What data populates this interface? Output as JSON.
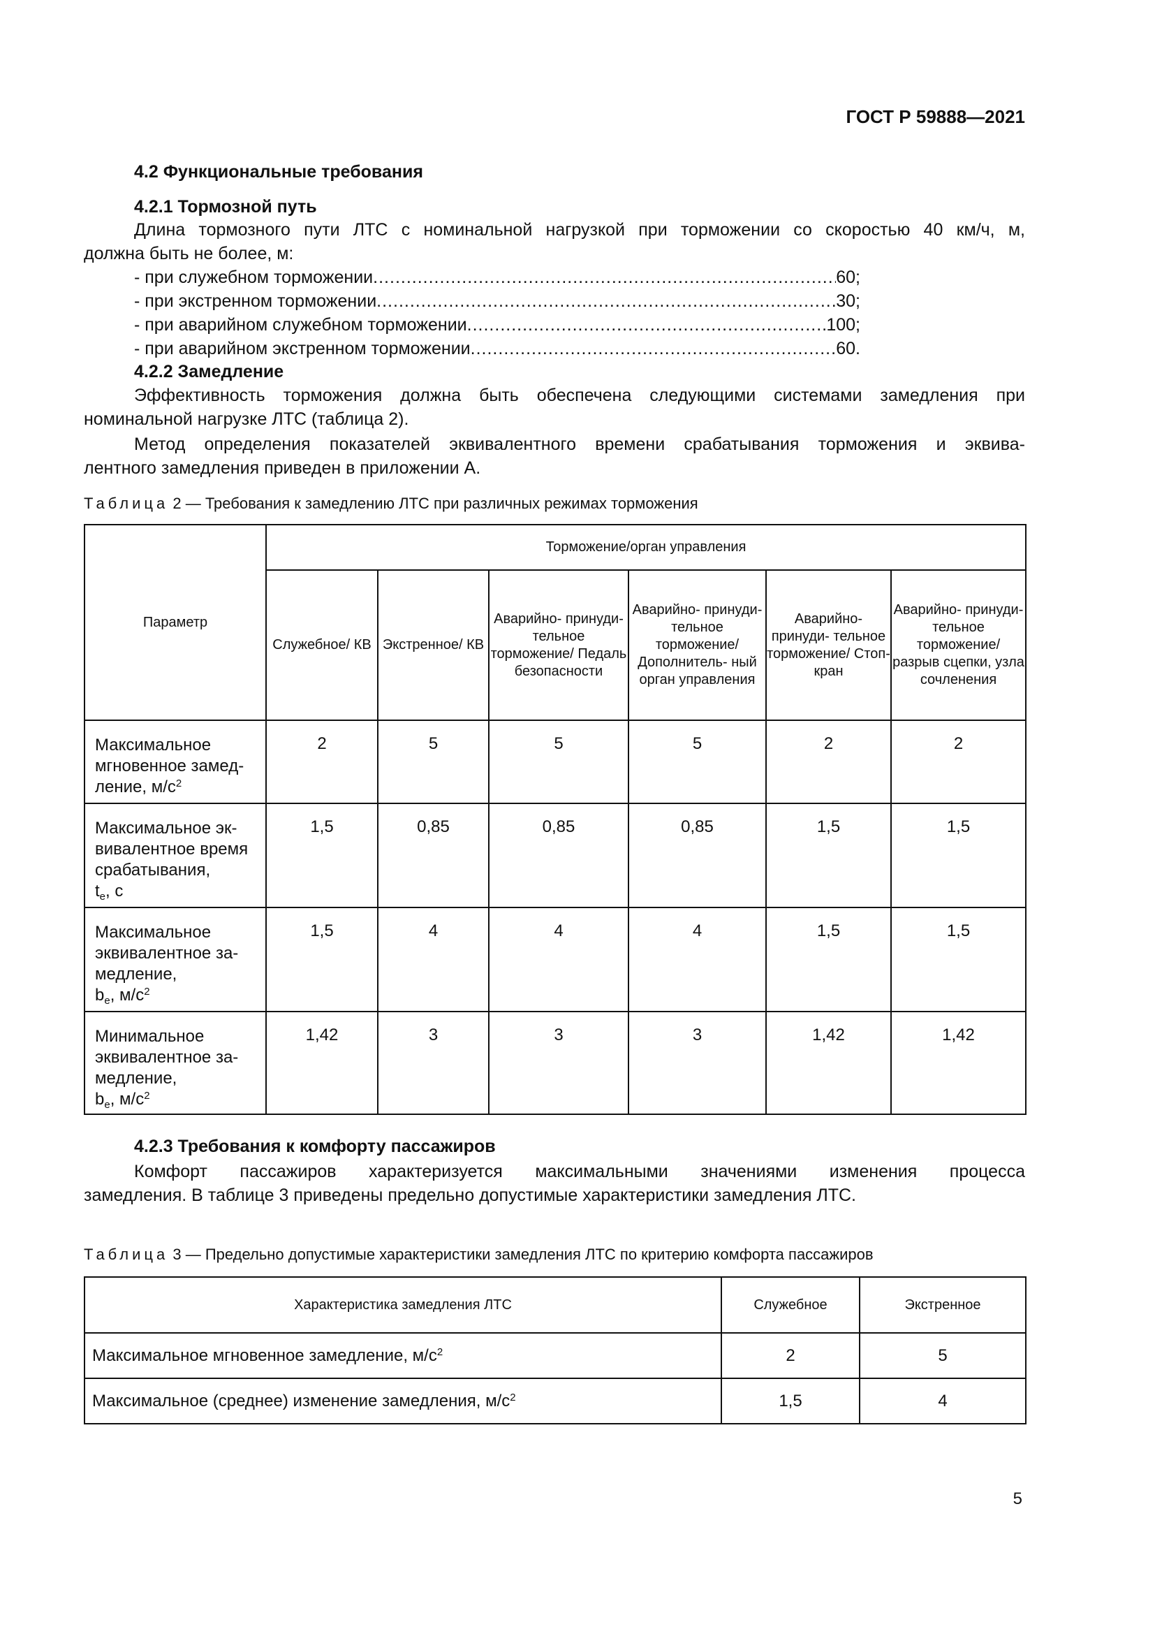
{
  "header": {
    "standard": "ГОСТ Р 59888—2021"
  },
  "s42": {
    "title": "4.2 Функциональные требования"
  },
  "s421": {
    "title": "4.2.1 Тормозной путь",
    "para_line1": "Длина тормозного пути ЛТС с номинальной нагрузкой при торможении со скоростью 40 км/ч, м,",
    "para_line2": "должна быть не более, м:",
    "items": [
      {
        "label": "- при служебном торможении ",
        "value": "60;"
      },
      {
        "label": "- при экстренном торможении ",
        "value": "30;"
      },
      {
        "label": "- при аварийном служебном торможении ",
        "value": "100;"
      },
      {
        "label": "- при аварийном экстренном торможении ",
        "value": "60."
      }
    ]
  },
  "s422": {
    "title": "4.2.2 Замедление",
    "p1_line1": "Эффективность торможения должна быть обеспечена следующими системами замедления при",
    "p1_line2": "номинальной нагрузке ЛТС (таблица 2).",
    "p2_line1": "Метод определения показателей эквивалентного времени срабатывания торможения и эквива-",
    "p2_line2": "лентного замедления приведен в приложении А."
  },
  "table2": {
    "caption_word": "Таблица",
    "caption_rest": " 2 — Требования к замедлению ЛТС при различных режимах торможения",
    "param_header": "Параметр",
    "group_header": "Торможение/орган управления",
    "columns": [
      "Служебное/ КВ",
      "Экстренное/ КВ",
      "Аварийно- принуди- тельное торможение/ Педаль безопасности",
      "Аварийно- принуди- тельное торможение/ Дополнитель- ный орган управления",
      "Аварийно- принуди- тельное торможение/ Стоп-кран",
      "Аварийно- принуди- тельное торможение/ разрыв сцепки, узла сочленения"
    ],
    "rows": [
      {
        "param": "Максимальное мгновенное замед-ление, м/с",
        "sym": "",
        "sub": "",
        "unit": "",
        "sup": "2",
        "values": [
          "2",
          "5",
          "5",
          "5",
          "2",
          "2"
        ]
      },
      {
        "param": "Максимальное эк-вивалентное время срабатывания,",
        "sym": "t",
        "sub": "e",
        "unit": ", с",
        "sup": "",
        "values": [
          "1,5",
          "0,85",
          "0,85",
          "0,85",
          "1,5",
          "1,5"
        ]
      },
      {
        "param": "Максимальное эквивалентное за-медление,",
        "sym": "b",
        "sub": "e",
        "unit": ", м/с",
        "sup": "2",
        "values": [
          "1,5",
          "4",
          "4",
          "4",
          "1,5",
          "1,5"
        ]
      },
      {
        "param": "Минимальное эквивалентное за-медление,",
        "sym": "b",
        "sub": "e",
        "unit": ", м/с",
        "sup": "2",
        "values": [
          "1,42",
          "3",
          "3",
          "3",
          "1,42",
          "1,42"
        ]
      }
    ]
  },
  "s423": {
    "title": "4.2.3 Требования к комфорту пассажиров",
    "p_line1": "Комфорт пассажиров характеризуется максимальными значениями изменения процесса",
    "p_line2": "замедления. В таблице 3 приведены предельно допустимые характеристики замедления ЛТС."
  },
  "table3": {
    "caption_word": "Таблица",
    "caption_rest": " 3 — Предельно допустимые характеристики замедления ЛТС по критерию комфорта пассажиров",
    "headers": [
      "Характеристика замедления ЛТС",
      "Служебное",
      "Экстренное"
    ],
    "rows": [
      {
        "label": "Максимальное мгновенное замедление, м/с",
        "sup": "2",
        "values": [
          "2",
          "5"
        ]
      },
      {
        "label": "Максимальное (среднее) изменение замедления, м/с",
        "sup": "2",
        "values": [
          "1,5",
          "4"
        ]
      }
    ]
  },
  "footer": {
    "page_number": "5"
  }
}
